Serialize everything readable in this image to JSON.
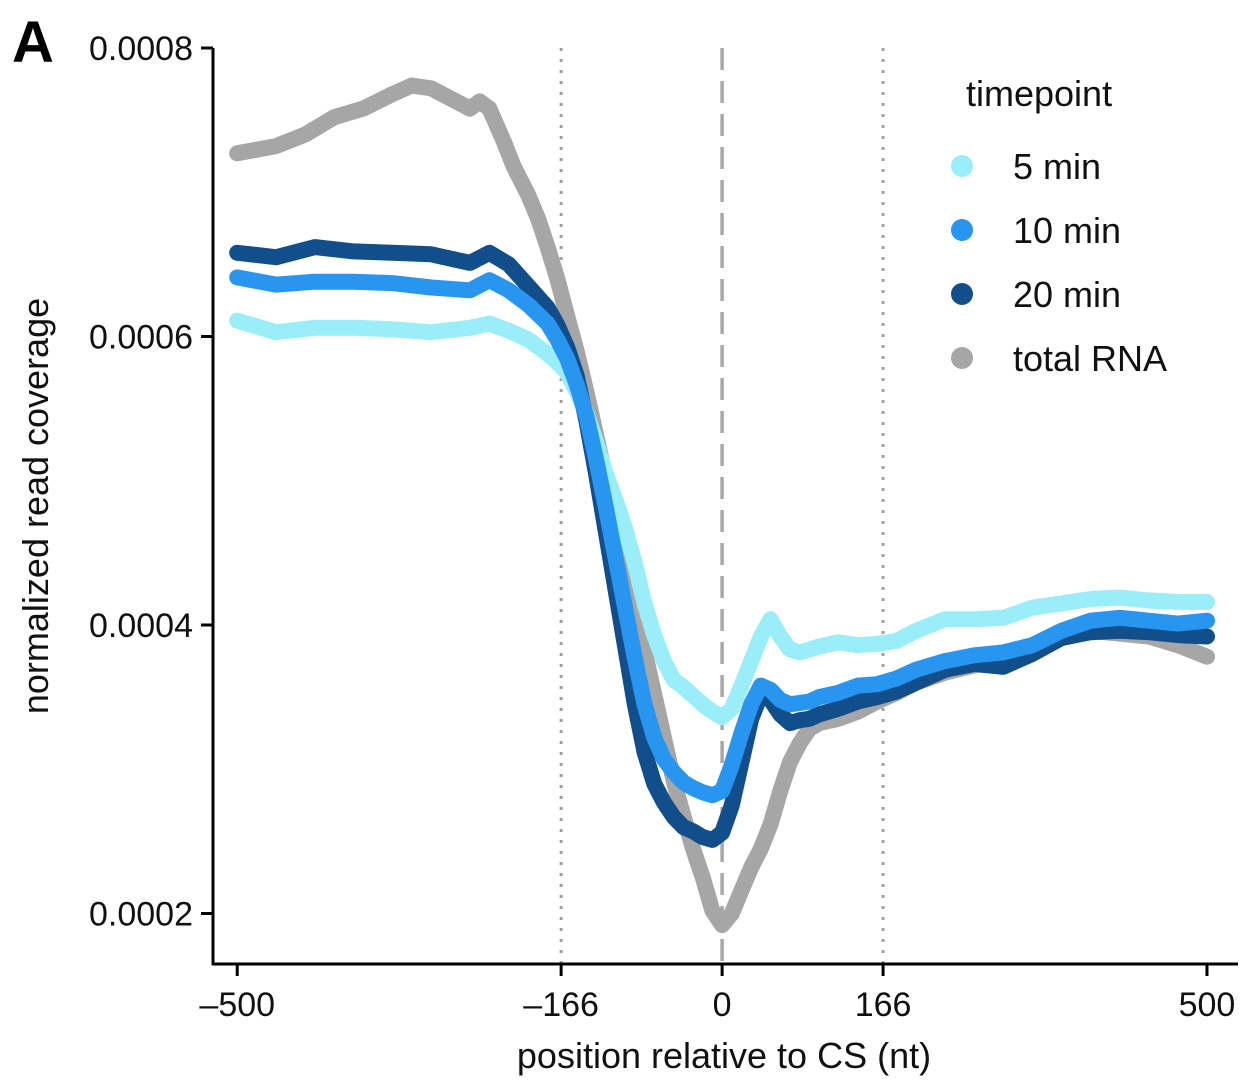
{
  "panel_label": "A",
  "chart_data": {
    "type": "line",
    "xlabel": "position relative to CS (nt)",
    "ylabel": "normalized read coverage",
    "xlim": [
      -525,
      532
    ],
    "ylim": [
      0.000165,
      0.0008
    ],
    "xticks": [
      -500,
      -166,
      0,
      166,
      500
    ],
    "xtick_labels": [
      "–500",
      "–166",
      "0",
      "166",
      "500"
    ],
    "yticks": [
      0.0002,
      0.0004,
      0.0006,
      0.0008
    ],
    "ytick_labels": [
      "0.0002",
      "0.0004",
      "0.0006",
      "0.0008"
    ],
    "reference_lines": [
      {
        "x": -166,
        "style": "dotted"
      },
      {
        "x": 0,
        "style": "dashed"
      },
      {
        "x": 166,
        "style": "dotted"
      }
    ],
    "legend": {
      "title": "timepoint",
      "position": "top-right"
    },
    "series": [
      {
        "name": "total RNA",
        "color": "#a6a6a6",
        "x": [
          -500,
          -460,
          -430,
          -400,
          -370,
          -340,
          -320,
          -300,
          -280,
          -260,
          -250,
          -240,
          -225,
          -215,
          -200,
          -190,
          -180,
          -170,
          -160,
          -150,
          -140,
          -130,
          -120,
          -110,
          -100,
          -90,
          -80,
          -70,
          -60,
          -50,
          -40,
          -30,
          -20,
          -10,
          0,
          10,
          20,
          30,
          40,
          50,
          60,
          70,
          80,
          90,
          100,
          120,
          140,
          160,
          180,
          200,
          230,
          260,
          290,
          320,
          350,
          380,
          410,
          440,
          470,
          500
        ],
        "values": [
          0.000727,
          0.000732,
          0.00074,
          0.000752,
          0.000758,
          0.000768,
          0.000774,
          0.000772,
          0.000765,
          0.000758,
          0.000763,
          0.000758,
          0.000735,
          0.000718,
          0.000698,
          0.000682,
          0.000662,
          0.00064,
          0.000615,
          0.00059,
          0.000562,
          0.000532,
          0.000502,
          0.000472,
          0.000442,
          0.000412,
          0.000382,
          0.000352,
          0.000322,
          0.000292,
          0.000268,
          0.000245,
          0.000225,
          0.000202,
          0.000192,
          0.0002,
          0.000216,
          0.000232,
          0.000245,
          0.000262,
          0.000285,
          0.000305,
          0.000318,
          0.000328,
          0.000332,
          0.000335,
          0.00034,
          0.000347,
          0.000353,
          0.00036,
          0.000367,
          0.000372,
          0.000378,
          0.000386,
          0.000396,
          0.000396,
          0.000394,
          0.000392,
          0.000386,
          0.000378
        ]
      },
      {
        "name": "5 min",
        "color": "#99eef8",
        "x": [
          -500,
          -460,
          -420,
          -380,
          -340,
          -300,
          -260,
          -240,
          -220,
          -200,
          -180,
          -170,
          -160,
          -150,
          -140,
          -130,
          -120,
          -110,
          -100,
          -90,
          -80,
          -70,
          -60,
          -50,
          -40,
          -30,
          -20,
          -10,
          0,
          10,
          20,
          30,
          40,
          50,
          60,
          70,
          80,
          90,
          100,
          120,
          140,
          160,
          180,
          200,
          230,
          260,
          290,
          320,
          350,
          380,
          410,
          440,
          470,
          500
        ],
        "values": [
          0.000611,
          0.000603,
          0.000606,
          0.000606,
          0.000605,
          0.000603,
          0.000606,
          0.000609,
          0.000604,
          0.000598,
          0.000588,
          0.000582,
          0.000575,
          0.000562,
          0.000547,
          0.000527,
          0.000505,
          0.000487,
          0.000467,
          0.000443,
          0.000415,
          0.000393,
          0.000375,
          0.000362,
          0.000357,
          0.000351,
          0.000345,
          0.00034,
          0.000336,
          0.000342,
          0.000358,
          0.000375,
          0.000392,
          0.000404,
          0.000392,
          0.000383,
          0.000381,
          0.000383,
          0.000385,
          0.000388,
          0.000386,
          0.000387,
          0.000389,
          0.000396,
          0.000404,
          0.000404,
          0.000405,
          0.000412,
          0.000415,
          0.000418,
          0.000419,
          0.000417,
          0.000416,
          0.000416
        ]
      },
      {
        "name": "20 min",
        "color": "#124e8a",
        "x": [
          -500,
          -460,
          -420,
          -380,
          -340,
          -300,
          -260,
          -240,
          -220,
          -200,
          -180,
          -170,
          -160,
          -150,
          -140,
          -130,
          -120,
          -110,
          -100,
          -90,
          -80,
          -70,
          -60,
          -50,
          -40,
          -30,
          -20,
          -10,
          0,
          10,
          20,
          30,
          40,
          50,
          60,
          70,
          80,
          90,
          100,
          120,
          140,
          160,
          180,
          200,
          230,
          260,
          290,
          320,
          350,
          380,
          410,
          440,
          470,
          500
        ],
        "values": [
          0.000658,
          0.000655,
          0.000662,
          0.000659,
          0.000658,
          0.000657,
          0.000651,
          0.000658,
          0.00065,
          0.000635,
          0.00062,
          0.000608,
          0.000593,
          0.000573,
          0.000542,
          0.000505,
          0.000465,
          0.000425,
          0.000385,
          0.000345,
          0.000312,
          0.00029,
          0.000277,
          0.000267,
          0.00026,
          0.000257,
          0.000253,
          0.000251,
          0.000256,
          0.000275,
          0.000305,
          0.000335,
          0.000352,
          0.000348,
          0.000338,
          0.000332,
          0.000334,
          0.000335,
          0.000338,
          0.000342,
          0.000347,
          0.00035,
          0.000354,
          0.00036,
          0.000369,
          0.000373,
          0.000371,
          0.00038,
          0.000391,
          0.000395,
          0.000396,
          0.000395,
          0.000393,
          0.000392
        ]
      },
      {
        "name": "10 min",
        "color": "#2895f0",
        "x": [
          -500,
          -460,
          -420,
          -380,
          -340,
          -300,
          -260,
          -240,
          -220,
          -200,
          -180,
          -170,
          -160,
          -150,
          -140,
          -130,
          -120,
          -110,
          -100,
          -90,
          -80,
          -70,
          -60,
          -50,
          -40,
          -30,
          -20,
          -10,
          0,
          10,
          20,
          30,
          40,
          50,
          60,
          70,
          80,
          90,
          100,
          120,
          140,
          160,
          180,
          200,
          230,
          260,
          290,
          320,
          350,
          380,
          410,
          440,
          470,
          500
        ],
        "values": [
          0.000641,
          0.000636,
          0.000638,
          0.000638,
          0.000637,
          0.000634,
          0.000632,
          0.000639,
          0.000632,
          0.000622,
          0.000609,
          0.000598,
          0.000585,
          0.000567,
          0.000545,
          0.000515,
          0.000482,
          0.000447,
          0.000412,
          0.000377,
          0.000345,
          0.000322,
          0.000307,
          0.000298,
          0.000291,
          0.000287,
          0.000284,
          0.000282,
          0.000285,
          0.000303,
          0.000325,
          0.000345,
          0.000358,
          0.000355,
          0.000348,
          0.000345,
          0.000346,
          0.000347,
          0.00035,
          0.000353,
          0.000358,
          0.000359,
          0.000363,
          0.000369,
          0.000375,
          0.000379,
          0.000381,
          0.000386,
          0.000396,
          0.000403,
          0.000405,
          0.000403,
          0.000401,
          0.000403
        ]
      }
    ]
  },
  "legend_entries": [
    {
      "label": "5 min",
      "color": "#99eef8"
    },
    {
      "label": "10 min",
      "color": "#2895f0"
    },
    {
      "label": "20 min",
      "color": "#124e8a"
    },
    {
      "label": "total RNA",
      "color": "#a6a6a6"
    }
  ]
}
